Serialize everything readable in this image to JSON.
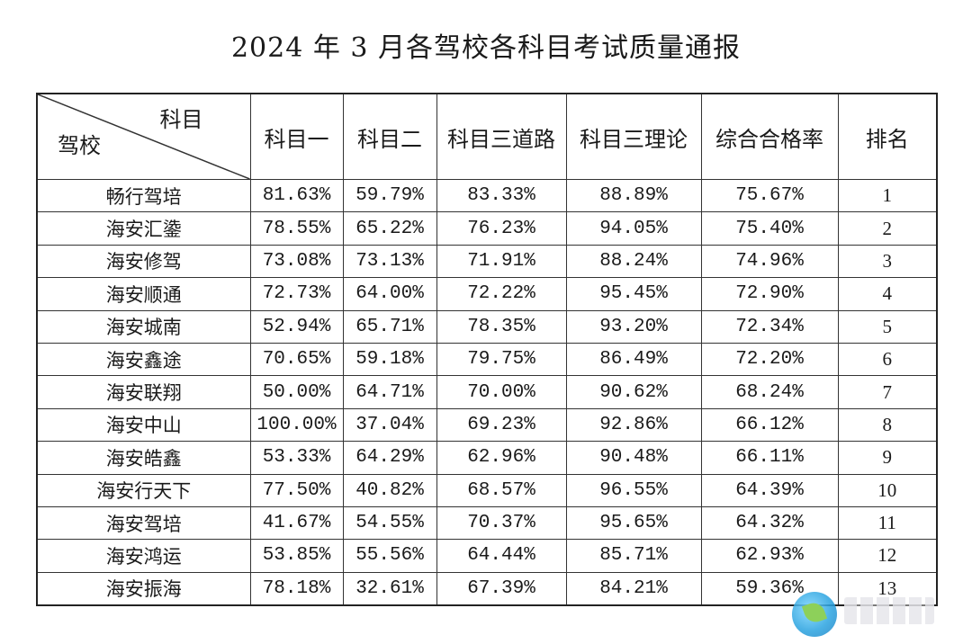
{
  "title": "2024 年 3 月各驾校各科目考试质量通报",
  "header": {
    "diag_top": "科目",
    "diag_bottom": "驾校",
    "columns": [
      "科目一",
      "科目二",
      "科目三道路",
      "科目三理论",
      "综合合格率",
      "排名"
    ]
  },
  "rows": [
    {
      "school": "畅行驾培",
      "k1": "81.63%",
      "k2": "59.79%",
      "k3road": "83.33%",
      "k3theory": "88.89%",
      "overall": "75.67%",
      "rank": "1"
    },
    {
      "school": "海安汇鍌",
      "k1": "78.55%",
      "k2": "65.22%",
      "k3road": "76.23%",
      "k3theory": "94.05%",
      "overall": "75.40%",
      "rank": "2"
    },
    {
      "school": "海安修驾",
      "k1": "73.08%",
      "k2": "73.13%",
      "k3road": "71.91%",
      "k3theory": "88.24%",
      "overall": "74.96%",
      "rank": "3"
    },
    {
      "school": "海安顺通",
      "k1": "72.73%",
      "k2": "64.00%",
      "k3road": "72.22%",
      "k3theory": "95.45%",
      "overall": "72.90%",
      "rank": "4"
    },
    {
      "school": "海安城南",
      "k1": "52.94%",
      "k2": "65.71%",
      "k3road": "78.35%",
      "k3theory": "93.20%",
      "overall": "72.34%",
      "rank": "5"
    },
    {
      "school": "海安鑫途",
      "k1": "70.65%",
      "k2": "59.18%",
      "k3road": "79.75%",
      "k3theory": "86.49%",
      "overall": "72.20%",
      "rank": "6"
    },
    {
      "school": "海安联翔",
      "k1": "50.00%",
      "k2": "64.71%",
      "k3road": "70.00%",
      "k3theory": "90.62%",
      "overall": "68.24%",
      "rank": "7"
    },
    {
      "school": "海安中山",
      "k1": "100.00%",
      "k2": "37.04%",
      "k3road": "69.23%",
      "k3theory": "92.86%",
      "overall": "66.12%",
      "rank": "8"
    },
    {
      "school": "海安皓鑫",
      "k1": "53.33%",
      "k2": "64.29%",
      "k3road": "62.96%",
      "k3theory": "90.48%",
      "overall": "66.11%",
      "rank": "9"
    },
    {
      "school": "海安行天下",
      "k1": "77.50%",
      "k2": "40.82%",
      "k3road": "68.57%",
      "k3theory": "96.55%",
      "overall": "64.39%",
      "rank": "10"
    },
    {
      "school": "海安驾培",
      "k1": "41.67%",
      "k2": "54.55%",
      "k3road": "70.37%",
      "k3theory": "95.65%",
      "overall": "64.32%",
      "rank": "11"
    },
    {
      "school": "海安鸿运",
      "k1": "53.85%",
      "k2": "55.56%",
      "k3road": "64.44%",
      "k3theory": "85.71%",
      "overall": "62.93%",
      "rank": "12"
    },
    {
      "school": "海安振海",
      "k1": "78.18%",
      "k2": "32.61%",
      "k3road": "67.39%",
      "k3theory": "84.21%",
      "overall": "59.36%",
      "rank": "13"
    }
  ]
}
